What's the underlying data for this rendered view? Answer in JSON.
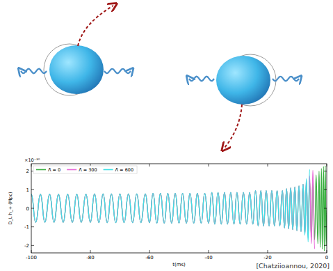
{
  "chart_data": {
    "type": "line",
    "x_label": "t(ms)",
    "y_label": "D_L h_+ (Mpc)",
    "y_scale_label": "×10⁻²⁰",
    "xlim": [
      -100,
      0
    ],
    "ylim": [
      -2.4,
      2.4
    ],
    "xticks": [
      -100,
      -80,
      -60,
      -40,
      -20,
      0
    ],
    "yticks": [
      -2,
      -1,
      0,
      1,
      2
    ],
    "grid": false,
    "legend": "upper left",
    "x": [
      -100.0,
      -98.5,
      -96.9,
      -95.4,
      -93.8,
      -92.3,
      -90.8,
      -89.2,
      -87.7,
      -86.1,
      -84.6,
      -83.1,
      -81.5,
      -80.0,
      -78.6,
      -77.1,
      -75.7,
      -74.3,
      -72.9,
      -71.4,
      -70.0,
      -68.6,
      -67.1,
      -65.7,
      -64.3,
      -62.9,
      -61.4,
      -60.0,
      -58.8,
      -57.5,
      -56.3,
      -55.0,
      -53.8,
      -52.5,
      -51.3,
      -50.0,
      -48.8,
      -47.5,
      -46.3,
      -45.0,
      -43.8,
      -42.5,
      -41.3,
      -40.0,
      -38.9,
      -37.9,
      -36.8,
      -35.7,
      -34.6,
      -33.6,
      -32.5,
      -31.4,
      -30.4,
      -29.3,
      -28.2,
      -27.1,
      -26.1,
      -25.0,
      -24.1,
      -23.2,
      -22.3,
      -21.4,
      -20.5,
      -19.5,
      -18.6,
      -17.7,
      -16.8,
      -15.9,
      -15.0,
      -14.3,
      -13.6,
      -12.9,
      -12.2,
      -11.5,
      -10.8,
      -10.1,
      -9.4,
      -8.7,
      -8.0,
      -7.4,
      -6.9,
      -6.3,
      -5.8,
      -5.2,
      -4.7,
      -4.1,
      -3.6,
      -3.0,
      -2.6,
      -2.2,
      -1.8,
      -1.5,
      -1.1,
      -0.8,
      -0.5,
      -0.2,
      0.0
    ],
    "series": [
      {
        "name": "Λ̃ = 0",
        "color": "#3cb043",
        "values": [
          0.75,
          -0.75,
          0.75,
          -0.75,
          0.75,
          -0.75,
          0.75,
          -0.75,
          0.75,
          -0.75,
          0.75,
          -0.75,
          0.75,
          -0.75,
          0.77,
          -0.77,
          0.77,
          -0.77,
          0.77,
          -0.77,
          0.77,
          -0.77,
          0.77,
          -0.77,
          0.77,
          -0.77,
          0.77,
          -0.77,
          0.8,
          -0.8,
          0.8,
          -0.8,
          0.8,
          -0.8,
          0.8,
          -0.8,
          0.8,
          -0.8,
          0.8,
          -0.8,
          0.8,
          -0.8,
          0.8,
          -0.8,
          0.85,
          -0.85,
          0.85,
          -0.85,
          0.85,
          -0.85,
          0.85,
          -0.85,
          0.85,
          -0.85,
          0.85,
          -0.85,
          0.85,
          -0.85,
          0.95,
          -0.95,
          0.95,
          -0.95,
          0.95,
          -0.95,
          0.95,
          -0.95,
          0.95,
          -0.95,
          0.95,
          -1.05,
          1.05,
          -1.1,
          1.1,
          -1.15,
          1.15,
          -1.2,
          1.2,
          -1.25,
          1.3,
          -1.35,
          1.4,
          -1.45,
          1.5,
          -1.55,
          1.6,
          -1.7,
          1.8,
          -1.9,
          2.0,
          -2.1,
          2.15,
          -2.2,
          2.25,
          -2.3,
          2.3,
          -2.0,
          0.0
        ]
      },
      {
        "name": "Λ̃ = 300",
        "color": "#e86ad8",
        "values": [
          0.75,
          -0.75,
          0.75,
          -0.75,
          0.75,
          -0.75,
          0.75,
          -0.75,
          0.75,
          -0.75,
          0.75,
          -0.75,
          0.75,
          -0.75,
          0.77,
          -0.77,
          0.77,
          -0.77,
          0.77,
          -0.77,
          0.77,
          -0.77,
          0.77,
          -0.77,
          0.77,
          -0.77,
          0.77,
          -0.77,
          0.8,
          -0.8,
          0.8,
          -0.8,
          0.8,
          -0.8,
          0.8,
          -0.8,
          0.8,
          -0.8,
          0.8,
          -0.8,
          0.8,
          -0.8,
          0.8,
          -0.8,
          0.85,
          -0.85,
          0.85,
          -0.85,
          0.85,
          -0.85,
          0.85,
          -0.85,
          0.85,
          -0.85,
          0.85,
          -0.85,
          0.85,
          -0.85,
          0.95,
          -0.95,
          0.95,
          -0.95,
          0.95,
          -0.95,
          0.95,
          -0.95,
          0.95,
          -0.95,
          0.95,
          -1.05,
          1.05,
          -1.1,
          1.1,
          -1.15,
          1.15,
          -1.2,
          1.2,
          -1.25,
          1.3,
          -1.4,
          1.5,
          -1.6,
          1.75,
          -1.9,
          2.05,
          -2.2,
          null,
          null,
          null,
          null,
          null,
          null,
          null,
          null,
          null,
          null,
          null
        ]
      },
      {
        "name": "Λ̃ = 600",
        "color": "#3fe0e6",
        "values": [
          0.75,
          -0.75,
          0.75,
          -0.75,
          0.75,
          -0.75,
          0.75,
          -0.75,
          0.75,
          -0.75,
          0.75,
          -0.75,
          0.75,
          -0.75,
          0.77,
          -0.77,
          0.77,
          -0.77,
          0.77,
          -0.77,
          0.77,
          -0.77,
          0.77,
          -0.77,
          0.77,
          -0.77,
          0.77,
          -0.77,
          0.8,
          -0.8,
          0.8,
          -0.8,
          0.8,
          -0.8,
          0.8,
          -0.8,
          0.8,
          -0.8,
          0.8,
          -0.8,
          0.8,
          -0.8,
          0.8,
          -0.8,
          0.85,
          -0.85,
          0.85,
          -0.85,
          0.85,
          -0.85,
          0.85,
          -0.85,
          0.85,
          -0.85,
          0.85,
          -0.85,
          0.85,
          -0.85,
          0.95,
          -0.95,
          0.95,
          -0.95,
          0.95,
          -0.95,
          0.95,
          -0.95,
          0.95,
          -0.95,
          0.95,
          -1.05,
          1.05,
          -1.1,
          1.1,
          -1.15,
          1.15,
          -1.2,
          1.2,
          -1.25,
          1.3,
          -1.45,
          1.6,
          -1.8,
          2.1,
          null,
          null,
          null,
          null,
          null,
          null,
          null,
          null,
          null,
          null,
          null,
          null,
          null,
          null
        ]
      }
    ]
  },
  "caption": "[Chatziioannou, 2020]"
}
